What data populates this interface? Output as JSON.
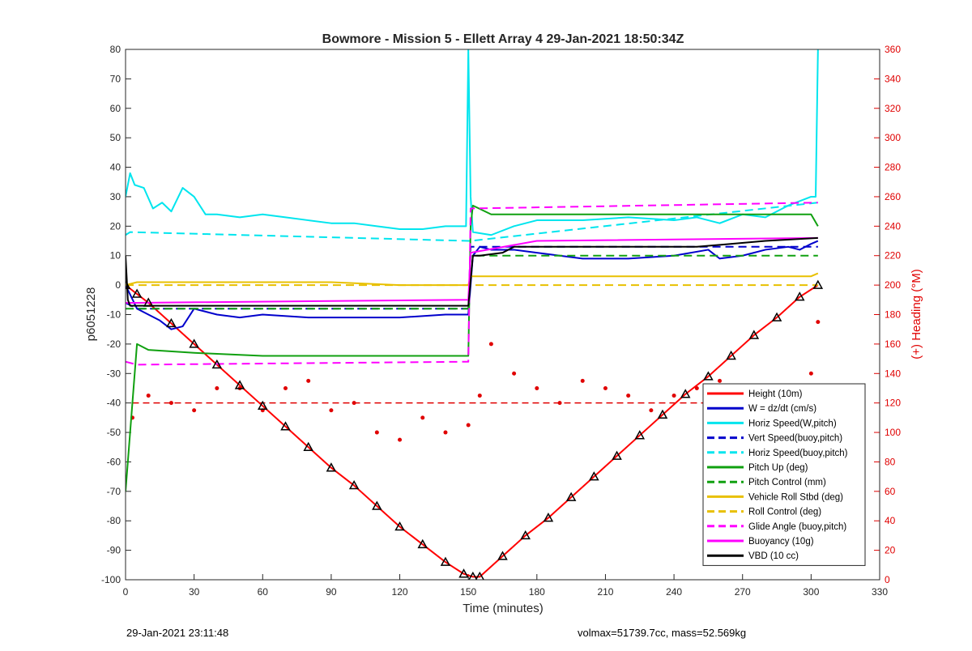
{
  "chart_data": {
    "type": "line",
    "title": "Bowmore - Mission 5 - Ellett Array 4 29-Jan-2021 18:50:34Z",
    "xlabel": "Time (minutes)",
    "ylabel": "p6051228",
    "y2label": "(+) Heading (°M)",
    "xlim": [
      0,
      330
    ],
    "ylim": [
      -100,
      80
    ],
    "y2lim": [
      0,
      360
    ],
    "xticks": [
      0,
      30,
      60,
      90,
      120,
      150,
      180,
      210,
      240,
      270,
      300,
      330
    ],
    "yticks": [
      -100,
      -90,
      -80,
      -70,
      -60,
      -50,
      -40,
      -30,
      -20,
      -10,
      0,
      10,
      20,
      30,
      40,
      50,
      60,
      70,
      80
    ],
    "y2ticks": [
      0,
      20,
      40,
      60,
      80,
      100,
      120,
      140,
      160,
      180,
      200,
      220,
      240,
      260,
      280,
      300,
      320,
      340,
      360
    ],
    "grid": false,
    "legend_position": "bottom-right",
    "series": [
      {
        "name": "Height (10m)",
        "color": "#ff0000",
        "style": "solid",
        "width": 2,
        "x": [
          0,
          5,
          10,
          20,
          30,
          40,
          50,
          60,
          70,
          80,
          90,
          100,
          110,
          120,
          130,
          140,
          148,
          152,
          155,
          165,
          175,
          185,
          195,
          205,
          215,
          225,
          235,
          245,
          255,
          265,
          275,
          285,
          295,
          303
        ],
        "y": [
          0,
          -3,
          -6,
          -13,
          -20,
          -27,
          -34,
          -41,
          -48,
          -55,
          -62,
          -68,
          -75,
          -82,
          -88,
          -94,
          -98,
          -99,
          -99,
          -92,
          -85,
          -79,
          -72,
          -65,
          -58,
          -51,
          -44,
          -37,
          -31,
          -24,
          -17,
          -11,
          -4,
          0
        ]
      },
      {
        "name": "W = dz/dt (cm/s)",
        "color": "#0000cc",
        "style": "solid",
        "width": 2,
        "x": [
          0,
          5,
          10,
          15,
          20,
          25,
          30,
          40,
          50,
          60,
          80,
          100,
          120,
          140,
          150,
          152,
          155,
          160,
          170,
          180,
          200,
          220,
          240,
          255,
          260,
          270,
          280,
          290,
          295,
          300,
          303
        ],
        "y": [
          0,
          -8,
          -10,
          -12,
          -15,
          -14,
          -8,
          -10,
          -11,
          -10,
          -11,
          -11,
          -11,
          -10,
          -10,
          10,
          13,
          12,
          12,
          11,
          9,
          9,
          10,
          12,
          9,
          10,
          12,
          13,
          12,
          14,
          15
        ]
      },
      {
        "name": "Horiz Speed(W,pitch)",
        "color": "#00e5ee",
        "style": "solid",
        "width": 2,
        "x": [
          0,
          2,
          4,
          8,
          12,
          16,
          20,
          25,
          30,
          35,
          40,
          50,
          60,
          70,
          80,
          90,
          100,
          110,
          120,
          130,
          140,
          149,
          150,
          151,
          152,
          160,
          170,
          180,
          200,
          220,
          240,
          250,
          260,
          270,
          280,
          290,
          300,
          302,
          303
        ],
        "y": [
          30,
          38,
          34,
          33,
          26,
          28,
          25,
          33,
          30,
          24,
          24,
          23,
          24,
          23,
          22,
          21,
          21,
          20,
          19,
          19,
          20,
          20,
          80,
          30,
          18,
          17,
          20,
          22,
          22,
          23,
          22,
          23,
          21,
          24,
          23,
          27,
          30,
          30,
          80
        ]
      },
      {
        "name": "Vert Speed(buoy,pitch)",
        "color": "#0000cc",
        "style": "dashed",
        "width": 2,
        "x": [
          0,
          5,
          150,
          151,
          303
        ],
        "y": [
          -6,
          -8,
          -8,
          13,
          13
        ]
      },
      {
        "name": "Horiz Speed(buoy,pitch)",
        "color": "#00e5ee",
        "style": "dashed",
        "width": 2,
        "x": [
          0,
          2,
          150,
          151,
          303
        ],
        "y": [
          17,
          18,
          15,
          15,
          28
        ]
      },
      {
        "name": "Pitch Up (deg)",
        "color": "#10a010",
        "style": "solid",
        "width": 2,
        "x": [
          0,
          5,
          10,
          30,
          60,
          90,
          120,
          150,
          151,
          152,
          160,
          180,
          210,
          240,
          270,
          300,
          303
        ],
        "y": [
          -70,
          -20,
          -22,
          -23,
          -24,
          -24,
          -24,
          -24,
          20,
          27,
          24,
          24,
          24,
          24,
          24,
          24,
          20
        ]
      },
      {
        "name": "Pitch Control (mm)",
        "color": "#10a010",
        "style": "dashed",
        "width": 2,
        "x": [
          0,
          5,
          150,
          151,
          303
        ],
        "y": [
          -8,
          -8,
          -8,
          10,
          10
        ]
      },
      {
        "name": "Vehicle Roll Stbd (deg)",
        "color": "#e8c000",
        "style": "solid",
        "width": 2,
        "x": [
          0,
          5,
          30,
          60,
          90,
          120,
          150,
          151,
          160,
          180,
          210,
          240,
          270,
          300,
          303
        ],
        "y": [
          0,
          1,
          1,
          1,
          1,
          0,
          0,
          3,
          3,
          3,
          3,
          3,
          3,
          3,
          4
        ]
      },
      {
        "name": "Roll Control (deg)",
        "color": "#e8c000",
        "style": "dashed",
        "width": 2,
        "x": [
          0,
          5,
          150,
          151,
          303
        ],
        "y": [
          0,
          0,
          0,
          0,
          0
        ]
      },
      {
        "name": "Glide Angle (buoy,pitch)",
        "color": "#ff00ff",
        "style": "dashed",
        "width": 2,
        "x": [
          0,
          5,
          150,
          151,
          303
        ],
        "y": [
          -26,
          -27,
          -26,
          26,
          28
        ]
      },
      {
        "name": "Buoyancy (10g)",
        "color": "#ff00ff",
        "style": "solid",
        "width": 2,
        "x": [
          0,
          5,
          150,
          151,
          180,
          303
        ],
        "y": [
          -6,
          -6,
          -5,
          11,
          15,
          16
        ]
      },
      {
        "name": "VBD (10 cc)",
        "color": "#000000",
        "style": "solid",
        "width": 2,
        "x": [
          0,
          1,
          2,
          3,
          150,
          152,
          155,
          165,
          170,
          190,
          250,
          280,
          303
        ],
        "y": [
          10,
          -5,
          -7,
          -7,
          -7,
          10,
          10,
          11,
          13,
          13,
          13,
          15,
          16
        ]
      }
    ],
    "heading_series": {
      "color": "#e00000",
      "axis": "right",
      "x": [
        3,
        10,
        20,
        30,
        40,
        50,
        60,
        70,
        80,
        90,
        100,
        110,
        120,
        130,
        140,
        150,
        155,
        160,
        170,
        180,
        190,
        200,
        210,
        220,
        230,
        240,
        250,
        260,
        270,
        280,
        290,
        300,
        303
      ],
      "y": [
        110,
        125,
        120,
        115,
        130,
        130,
        115,
        130,
        135,
        115,
        120,
        100,
        95,
        110,
        100,
        105,
        125,
        160,
        140,
        130,
        120,
        135,
        130,
        125,
        115,
        125,
        130,
        135,
        130,
        130,
        125,
        140,
        175
      ],
      "mean": 120
    },
    "timestamp": "29-Jan-2021 23:11:48",
    "summary": "volmax=51739.7cc, mass=52.569kg"
  }
}
